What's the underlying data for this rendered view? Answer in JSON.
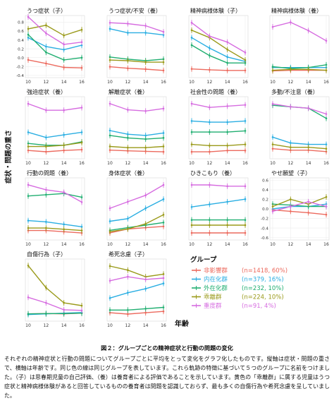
{
  "figure": {
    "ylabel": "症状・問題の重さ",
    "xlabel": "年齢",
    "colors": {
      "nonAff": "#ec6a5e",
      "internal": "#2aaee2",
      "external": "#1fae70",
      "dissoc": "#9a9a1a",
      "severe": "#d66ce0"
    }
  },
  "legend": {
    "title": "グループ",
    "items": [
      {
        "key": "nonAff",
        "name": "非影響群",
        "n": "(n=1418, 60%)"
      },
      {
        "key": "internal",
        "name": "内在化群",
        "n": "(n=379, 16%)"
      },
      {
        "key": "external",
        "name": "外在化群",
        "n": "(n=232, 10%)"
      },
      {
        "key": "dissoc",
        "name": "乖離群",
        "n": "(n=224, 10%)"
      },
      {
        "key": "severe",
        "name": "重度群",
        "n": "(n=91, 4%)"
      }
    ]
  },
  "caption": {
    "title": "図２：グループごとの精神症状と行動の問題の変化",
    "body": "それぞれの精神症状と行動の問題についてグループごとに平均をとって変化をグラフ化したものです。縦軸は症状・問題の重さで、横軸は年齢です。同じ色の線は同じグループを表しています。これら軌跡の特徴に基づいて５つのグループに名前をつけました。（子）は思春期児童の自己評価、（養）は養育者による評価であることを示しています。黄色の「乖離群」に属する児童はうつ症状と精神病様体験があると回答しているものの養育者は問題を認識しておらず、最も多くの自傷行為や希死念慮を呈していました。"
  },
  "chart_data": [
    {
      "type": "line",
      "title": "うつ症状（子）",
      "x": [
        10,
        12,
        14,
        16
      ],
      "yticks": [
        "-0.4",
        "-0.2",
        "0.0",
        "0.2",
        "0.4",
        "0.6",
        "0.8"
      ],
      "ylim": [
        -0.45,
        0.95
      ],
      "series": [
        {
          "group": "nonAff",
          "values": [
            -0.05,
            -0.13,
            -0.22,
            -0.23
          ]
        },
        {
          "group": "internal",
          "values": [
            0.45,
            0.25,
            0.18,
            0.28
          ]
        },
        {
          "group": "external",
          "values": [
            0.52,
            0.12,
            -0.05,
            0.0
          ]
        },
        {
          "group": "dissoc",
          "values": [
            0.65,
            0.73,
            0.5,
            0.63
          ]
        },
        {
          "group": "severe",
          "values": [
            0.92,
            0.55,
            0.3,
            0.35
          ]
        }
      ]
    },
    {
      "type": "line",
      "title": "うつ症状/不安（養）",
      "x": [
        10,
        12,
        14,
        16
      ],
      "series": [
        {
          "group": "nonAff",
          "values": [
            -0.2,
            -0.25,
            -0.28,
            -0.32
          ]
        },
        {
          "group": "internal",
          "values": [
            1.05,
            0.92,
            0.92,
            0.85
          ]
        },
        {
          "group": "external",
          "values": [
            0.12,
            0.05,
            0.0,
            0.05
          ]
        },
        {
          "group": "dissoc",
          "values": [
            0.02,
            0.0,
            -0.05,
            -0.05
          ]
        },
        {
          "group": "severe",
          "values": [
            1.25,
            1.22,
            1.15,
            0.95
          ]
        }
      ]
    },
    {
      "type": "line",
      "title": "精神病様体験（子）",
      "x": [
        10,
        12,
        14,
        16
      ],
      "series": [
        {
          "group": "nonAff",
          "values": [
            -0.35,
            -0.38,
            -0.4,
            -0.4
          ]
        },
        {
          "group": "internal",
          "values": [
            0.7,
            0.35,
            0.05,
            -0.1
          ]
        },
        {
          "group": "external",
          "values": [
            0.45,
            0.1,
            -0.15,
            -0.15
          ]
        },
        {
          "group": "dissoc",
          "values": [
            0.95,
            0.7,
            0.3,
            -0.05
          ]
        },
        {
          "group": "severe",
          "values": [
            1.2,
            0.75,
            0.55,
            0.2
          ]
        }
      ]
    },
    {
      "type": "line",
      "title": "精神病様体験（養）",
      "x": [
        10,
        12,
        14,
        16
      ],
      "series": [
        {
          "group": "nonAff",
          "values": [
            -0.08,
            -0.05,
            -0.05,
            -0.05
          ]
        },
        {
          "group": "internal",
          "values": [
            0.1,
            0.1,
            0.1,
            0.1
          ]
        },
        {
          "group": "external",
          "values": [
            0.15,
            0.05,
            0.1,
            0.25
          ]
        },
        {
          "group": "dissoc",
          "values": [
            -0.05,
            0.0,
            0.0,
            -0.05
          ]
        },
        {
          "group": "severe",
          "values": [
            2.3,
            2.55,
            2.1,
            1.55
          ]
        }
      ]
    },
    {
      "type": "line",
      "title": "強迫症状（養）",
      "x": [
        10,
        12,
        14,
        16
      ],
      "series": [
        {
          "group": "nonAff",
          "values": [
            -0.15,
            -0.2,
            -0.15,
            -0.12
          ]
        },
        {
          "group": "internal",
          "values": [
            0.55,
            0.35,
            0.45,
            0.55
          ]
        },
        {
          "group": "external",
          "values": [
            0.12,
            0.05,
            0.05,
            0.18
          ]
        },
        {
          "group": "dissoc",
          "values": [
            0.0,
            0.0,
            0.05,
            0.15
          ]
        },
        {
          "group": "severe",
          "values": [
            1.65,
            1.4,
            1.4,
            1.5
          ]
        }
      ]
    },
    {
      "type": "line",
      "title": "解離症状（養）",
      "x": [
        10,
        12,
        14,
        16
      ],
      "series": [
        {
          "group": "nonAff",
          "values": [
            -0.15,
            -0.18,
            -0.2,
            -0.22
          ]
        },
        {
          "group": "internal",
          "values": [
            0.65,
            0.5,
            0.45,
            0.55
          ]
        },
        {
          "group": "external",
          "values": [
            0.45,
            0.35,
            0.3,
            0.35
          ]
        },
        {
          "group": "dissoc",
          "values": [
            0.0,
            -0.05,
            -0.05,
            0.0
          ]
        },
        {
          "group": "severe",
          "values": [
            1.75,
            1.5,
            1.45,
            1.55
          ]
        }
      ]
    },
    {
      "type": "line",
      "title": "社会性の問題（養）",
      "x": [
        10,
        12,
        14,
        16
      ],
      "series": [
        {
          "group": "nonAff",
          "values": [
            -0.25,
            -0.25,
            -0.2,
            -0.2
          ]
        },
        {
          "group": "internal",
          "values": [
            1.0,
            0.95,
            0.95,
            1.0
          ]
        },
        {
          "group": "external",
          "values": [
            0.55,
            0.55,
            0.55,
            0.6
          ]
        },
        {
          "group": "dissoc",
          "values": [
            0.05,
            0.0,
            0.0,
            0.05
          ]
        },
        {
          "group": "severe",
          "values": [
            1.7,
            1.55,
            1.6,
            1.65
          ]
        }
      ]
    },
    {
      "type": "line",
      "title": "多動/不注意（養）",
      "x": [
        10,
        12,
        14,
        16
      ],
      "series": [
        {
          "group": "nonAff",
          "values": [
            -0.3,
            -0.35,
            -0.35,
            -0.4
          ]
        },
        {
          "group": "internal",
          "values": [
            0.1,
            -0.1,
            -0.15,
            -0.15
          ]
        },
        {
          "group": "external",
          "values": [
            1.2,
            1.15,
            1.1,
            0.75
          ]
        },
        {
          "group": "dissoc",
          "values": [
            -0.15,
            -0.25,
            -0.25,
            -0.3
          ]
        },
        {
          "group": "severe",
          "values": [
            1.25,
            1.15,
            1.1,
            0.9
          ]
        }
      ]
    },
    {
      "type": "line",
      "title": "行動の問題（養）",
      "x": [
        10,
        12,
        14,
        16
      ],
      "series": [
        {
          "group": "nonAff",
          "values": [
            -0.3,
            -0.3,
            -0.35,
            -0.4
          ]
        },
        {
          "group": "internal",
          "values": [
            0.1,
            0.05,
            -0.05,
            -0.15
          ]
        },
        {
          "group": "external",
          "values": [
            1.1,
            1.15,
            1.2,
            1.05
          ]
        },
        {
          "group": "dissoc",
          "values": [
            -0.2,
            -0.2,
            -0.25,
            -0.3
          ]
        },
        {
          "group": "severe",
          "values": [
            1.55,
            1.35,
            1.25,
            0.85
          ]
        }
      ]
    },
    {
      "type": "line",
      "title": "身体症状（養）",
      "x": [
        10,
        12,
        14,
        16
      ],
      "series": [
        {
          "group": "nonAff",
          "values": [
            -0.4,
            -0.25,
            -0.2,
            -0.15
          ]
        },
        {
          "group": "internal",
          "values": [
            0.05,
            0.15,
            0.55,
            0.9
          ]
        },
        {
          "group": "external",
          "values": [
            -0.3,
            -0.2,
            -0.1,
            0.0
          ]
        },
        {
          "group": "dissoc",
          "values": [
            -0.35,
            -0.25,
            -0.05,
            0.3
          ]
        },
        {
          "group": "severe",
          "values": [
            0.55,
            0.8,
            1.05,
            1.45
          ]
        }
      ]
    },
    {
      "type": "line",
      "title": "ひきこもり（養）",
      "x": [
        10,
        12,
        14,
        16
      ],
      "series": [
        {
          "group": "nonAff",
          "values": [
            -0.25,
            -0.25,
            -0.25,
            -0.25
          ]
        },
        {
          "group": "internal",
          "values": [
            0.75,
            0.85,
            0.95,
            1.05
          ]
        },
        {
          "group": "external",
          "values": [
            0.25,
            0.25,
            0.25,
            0.25
          ]
        },
        {
          "group": "dissoc",
          "values": [
            0.05,
            0.05,
            0.05,
            0.05
          ]
        },
        {
          "group": "severe",
          "values": [
            1.6,
            1.6,
            1.55,
            1.55
          ]
        }
      ]
    },
    {
      "type": "line",
      "title": "やせ願望（子）",
      "x": [
        10,
        12,
        14,
        16
      ],
      "yticks": [
        "-0.6",
        "-0.4",
        "-0.2",
        "0.0",
        "0.2",
        "0.4",
        "0.6"
      ],
      "ylim": [
        -0.65,
        0.65
      ],
      "series": [
        {
          "group": "nonAff",
          "values": [
            -0.02,
            -0.05,
            -0.08,
            -0.12
          ]
        },
        {
          "group": "internal",
          "values": [
            0.0,
            0.05,
            0.05,
            0.1
          ]
        },
        {
          "group": "external",
          "values": [
            0.1,
            0.08,
            0.05,
            0.05
          ]
        },
        {
          "group": "dissoc",
          "values": [
            0.05,
            0.2,
            0.1,
            0.25
          ]
        },
        {
          "group": "severe",
          "values": [
            -0.05,
            0.05,
            0.15,
            0.05
          ]
        }
      ]
    },
    {
      "type": "line",
      "title": "自傷行為（子）",
      "x": [
        10,
        12,
        14,
        16
      ],
      "series": [
        {
          "group": "nonAff",
          "values": [
            -0.3,
            -0.28,
            -0.3,
            -0.25
          ]
        },
        {
          "group": "internal",
          "values": [
            -0.35,
            -0.3,
            -0.25,
            -0.2
          ]
        },
        {
          "group": "external",
          "values": [
            -0.3,
            -0.28,
            -0.28,
            -0.25
          ]
        },
        {
          "group": "dissoc",
          "values": [
            3.2,
            1.6,
            0.5,
            0.3
          ]
        },
        {
          "group": "severe",
          "values": [
            0.9,
            0.5,
            0.0,
            -0.05
          ]
        }
      ]
    },
    {
      "type": "line",
      "title": "希死念慮（子）",
      "x": [
        10,
        12,
        14,
        16
      ],
      "series": [
        {
          "group": "nonAff",
          "values": [
            -0.15,
            -0.2,
            -0.15,
            -0.1
          ]
        },
        {
          "group": "internal",
          "values": [
            0.4,
            0.6,
            0.75,
            0.95
          ]
        },
        {
          "group": "external",
          "values": [
            -0.05,
            -0.05,
            0.0,
            0.05
          ]
        },
        {
          "group": "dissoc",
          "values": [
            1.6,
            1.45,
            1.2,
            1.3
          ]
        },
        {
          "group": "severe",
          "values": [
            1.05,
            1.2,
            1.1,
            1.15
          ]
        }
      ]
    }
  ]
}
